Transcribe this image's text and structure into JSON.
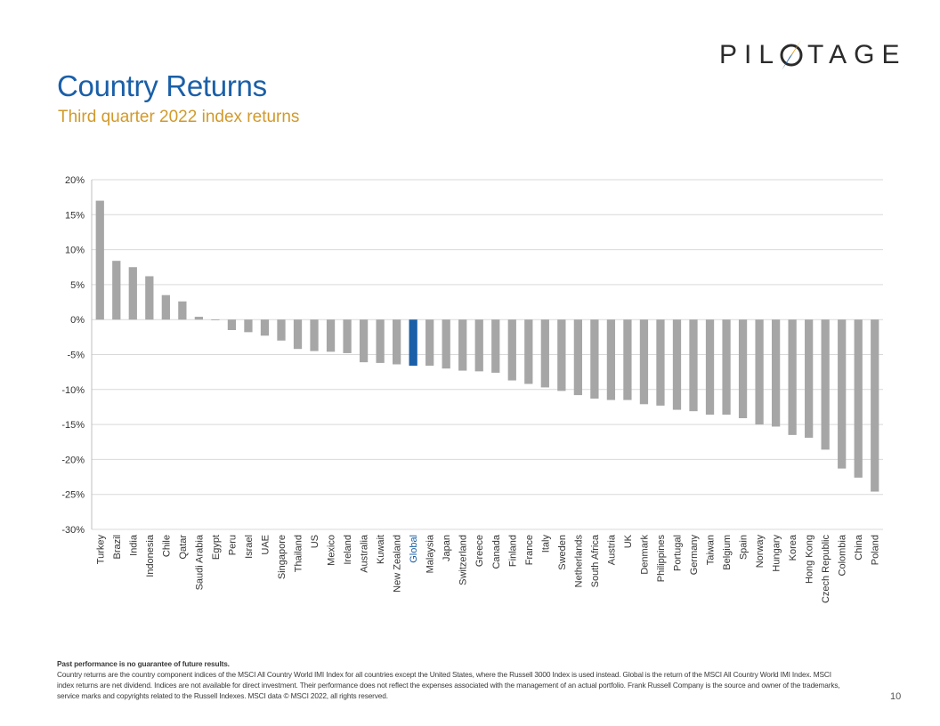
{
  "header": {
    "title": "Country Returns",
    "subtitle": "Third quarter 2022 index returns"
  },
  "logo": {
    "left": "PIL",
    "right": "TAGE",
    "icon": "compass-needle-icon"
  },
  "colors": {
    "bar": "#a6a6a6",
    "highlight": "#1a5fa8",
    "grid": "#d9d9d9",
    "title": "#1a5fa8",
    "subtitle": "#d19a2c"
  },
  "chart_data": {
    "type": "bar",
    "title": "Third quarter 2022 index returns",
    "xlabel": "",
    "ylabel": "",
    "ylim": [
      -30,
      20
    ],
    "yticks": [
      20,
      15,
      10,
      5,
      0,
      -5,
      -10,
      -15,
      -20,
      -25,
      -30
    ],
    "ytick_labels": [
      "20%",
      "15%",
      "10%",
      "5%",
      "0%",
      "-5%",
      "-10%",
      "-15%",
      "-20%",
      "-25%",
      "-30%"
    ],
    "grid": true,
    "highlight": "Global",
    "categories": [
      "Turkey",
      "Brazil",
      "India",
      "Indonesia",
      "Chile",
      "Qatar",
      "Saudi Arabia",
      "Egypt",
      "Peru",
      "Israel",
      "UAE",
      "Singapore",
      "Thailand",
      "US",
      "Mexico",
      "Ireland",
      "Australia",
      "Kuwait",
      "New Zealand",
      "Global",
      "Malaysia",
      "Japan",
      "Switzerland",
      "Greece",
      "Canada",
      "Finland",
      "France",
      "Italy",
      "Sweden",
      "Netherlands",
      "South Africa",
      "Austria",
      "UK",
      "Denmark",
      "Philippines",
      "Portugal",
      "Germany",
      "Taiwan",
      "Belgium",
      "Spain",
      "Norway",
      "Hungary",
      "Korea",
      "Hong Kong",
      "Czech Republic",
      "Colombia",
      "China",
      "Poland"
    ],
    "values": [
      17.0,
      8.4,
      7.5,
      6.2,
      3.5,
      2.6,
      0.4,
      -0.1,
      -1.5,
      -1.8,
      -2.3,
      -3.0,
      -4.2,
      -4.5,
      -4.6,
      -4.8,
      -6.1,
      -6.2,
      -6.4,
      -6.6,
      -6.6,
      -7.0,
      -7.3,
      -7.4,
      -7.6,
      -8.7,
      -9.2,
      -9.7,
      -10.2,
      -10.8,
      -11.3,
      -11.5,
      -11.5,
      -12.1,
      -12.3,
      -12.9,
      -13.1,
      -13.6,
      -13.6,
      -14.1,
      -15.0,
      -15.3,
      -16.5,
      -16.9,
      -18.6,
      -21.3,
      -22.6,
      -24.6
    ]
  },
  "footnote": {
    "bold": "Past performance is no guarantee of future results.",
    "body": "Country returns are the country component indices of the MSCI All Country World IMI Index for all countries except the United States, where the Russell 3000 Index is used instead. Global is the return of the MSCI All Country World IMI Index. MSCI index returns are net dividend. Indices are not available for direct investment. Their performance does not reflect the expenses associated with the management of an actual portfolio. Frank Russell Company is the source and owner of the trademarks, service marks and copyrights related to the Russell Indexes. MSCI data © MSCI 2022, all rights reserved."
  },
  "page_number": "10"
}
